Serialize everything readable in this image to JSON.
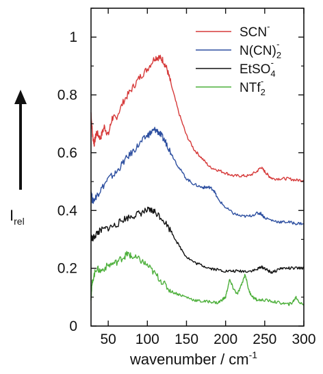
{
  "chart_data": {
    "type": "line",
    "xlabel": "wavenumber / cm",
    "xlabel_sup": "-1",
    "ylabel": "I",
    "ylabel_sub": "rel",
    "xlim": [
      28,
      300
    ],
    "ylim": [
      0,
      1.1
    ],
    "xticks": [
      50,
      100,
      150,
      200,
      250,
      300
    ],
    "yticks": [
      0,
      0.2,
      0.4,
      0.6,
      0.8,
      1
    ],
    "ytick_labels": [
      "0",
      "0.2",
      "0.4",
      "0.6",
      "0.8",
      "1"
    ],
    "legend_position": "top-right",
    "grid": false,
    "series": [
      {
        "name": "SCN",
        "name_sup": "-",
        "name_sub": "",
        "color": "#d63a3a",
        "x": [
          28,
          30,
          32,
          35,
          40,
          45,
          50,
          55,
          60,
          70,
          80,
          90,
          100,
          110,
          115,
          120,
          125,
          130,
          140,
          150,
          160,
          170,
          180,
          190,
          200,
          210,
          220,
          230,
          240,
          245,
          250,
          255,
          260,
          270,
          280,
          290,
          300
        ],
        "y": [
          0.74,
          0.66,
          0.63,
          0.67,
          0.65,
          0.69,
          0.66,
          0.72,
          0.72,
          0.78,
          0.82,
          0.86,
          0.89,
          0.93,
          0.93,
          0.92,
          0.89,
          0.84,
          0.74,
          0.66,
          0.61,
          0.58,
          0.55,
          0.54,
          0.53,
          0.52,
          0.52,
          0.52,
          0.535,
          0.55,
          0.535,
          0.52,
          0.51,
          0.51,
          0.51,
          0.505,
          0.505
        ]
      },
      {
        "name": "N(CN)",
        "name_sup": "-",
        "name_sub": "2",
        "color": "#2d4fa0",
        "x": [
          28,
          30,
          35,
          40,
          50,
          60,
          70,
          80,
          90,
          100,
          105,
          110,
          115,
          120,
          125,
          130,
          140,
          150,
          160,
          170,
          175,
          180,
          185,
          190,
          200,
          210,
          220,
          230,
          240,
          245,
          250,
          260,
          270,
          280,
          290,
          300
        ],
        "y": [
          0.47,
          0.43,
          0.45,
          0.47,
          0.51,
          0.53,
          0.57,
          0.6,
          0.63,
          0.66,
          0.67,
          0.68,
          0.67,
          0.65,
          0.63,
          0.6,
          0.55,
          0.51,
          0.49,
          0.48,
          0.48,
          0.48,
          0.47,
          0.44,
          0.41,
          0.39,
          0.38,
          0.38,
          0.39,
          0.39,
          0.375,
          0.365,
          0.36,
          0.36,
          0.355,
          0.355
        ]
      },
      {
        "name": "EtSO",
        "name_sup": "-",
        "name_sub": "4",
        "color": "#111111",
        "x": [
          28,
          30,
          35,
          40,
          50,
          60,
          70,
          80,
          90,
          100,
          105,
          110,
          120,
          130,
          140,
          150,
          160,
          170,
          180,
          190,
          200,
          210,
          220,
          230,
          240,
          245,
          250,
          255,
          260,
          270,
          280,
          290,
          300
        ],
        "y": [
          0.31,
          0.3,
          0.32,
          0.33,
          0.34,
          0.35,
          0.37,
          0.38,
          0.39,
          0.4,
          0.4,
          0.395,
          0.37,
          0.33,
          0.28,
          0.24,
          0.22,
          0.21,
          0.2,
          0.195,
          0.19,
          0.19,
          0.19,
          0.19,
          0.195,
          0.205,
          0.2,
          0.19,
          0.185,
          0.2,
          0.2,
          0.2,
          0.2
        ]
      },
      {
        "name": "NTf",
        "name_sup": "-",
        "name_sub": "2",
        "color": "#4caf3a",
        "x": [
          28,
          30,
          35,
          40,
          50,
          60,
          70,
          75,
          80,
          90,
          100,
          110,
          120,
          130,
          140,
          150,
          160,
          170,
          180,
          190,
          195,
          200,
          205,
          210,
          215,
          220,
          225,
          230,
          235,
          240,
          250,
          260,
          270,
          280,
          285,
          290,
          295,
          300
        ],
        "y": [
          0.1,
          0.16,
          0.2,
          0.19,
          0.21,
          0.22,
          0.24,
          0.25,
          0.24,
          0.23,
          0.21,
          0.18,
          0.15,
          0.12,
          0.11,
          0.1,
          0.09,
          0.085,
          0.085,
          0.08,
          0.09,
          0.1,
          0.16,
          0.13,
          0.11,
          0.14,
          0.18,
          0.12,
          0.1,
          0.09,
          0.09,
          0.085,
          0.08,
          0.075,
          0.08,
          0.1,
          0.08,
          0.075
        ]
      }
    ]
  }
}
